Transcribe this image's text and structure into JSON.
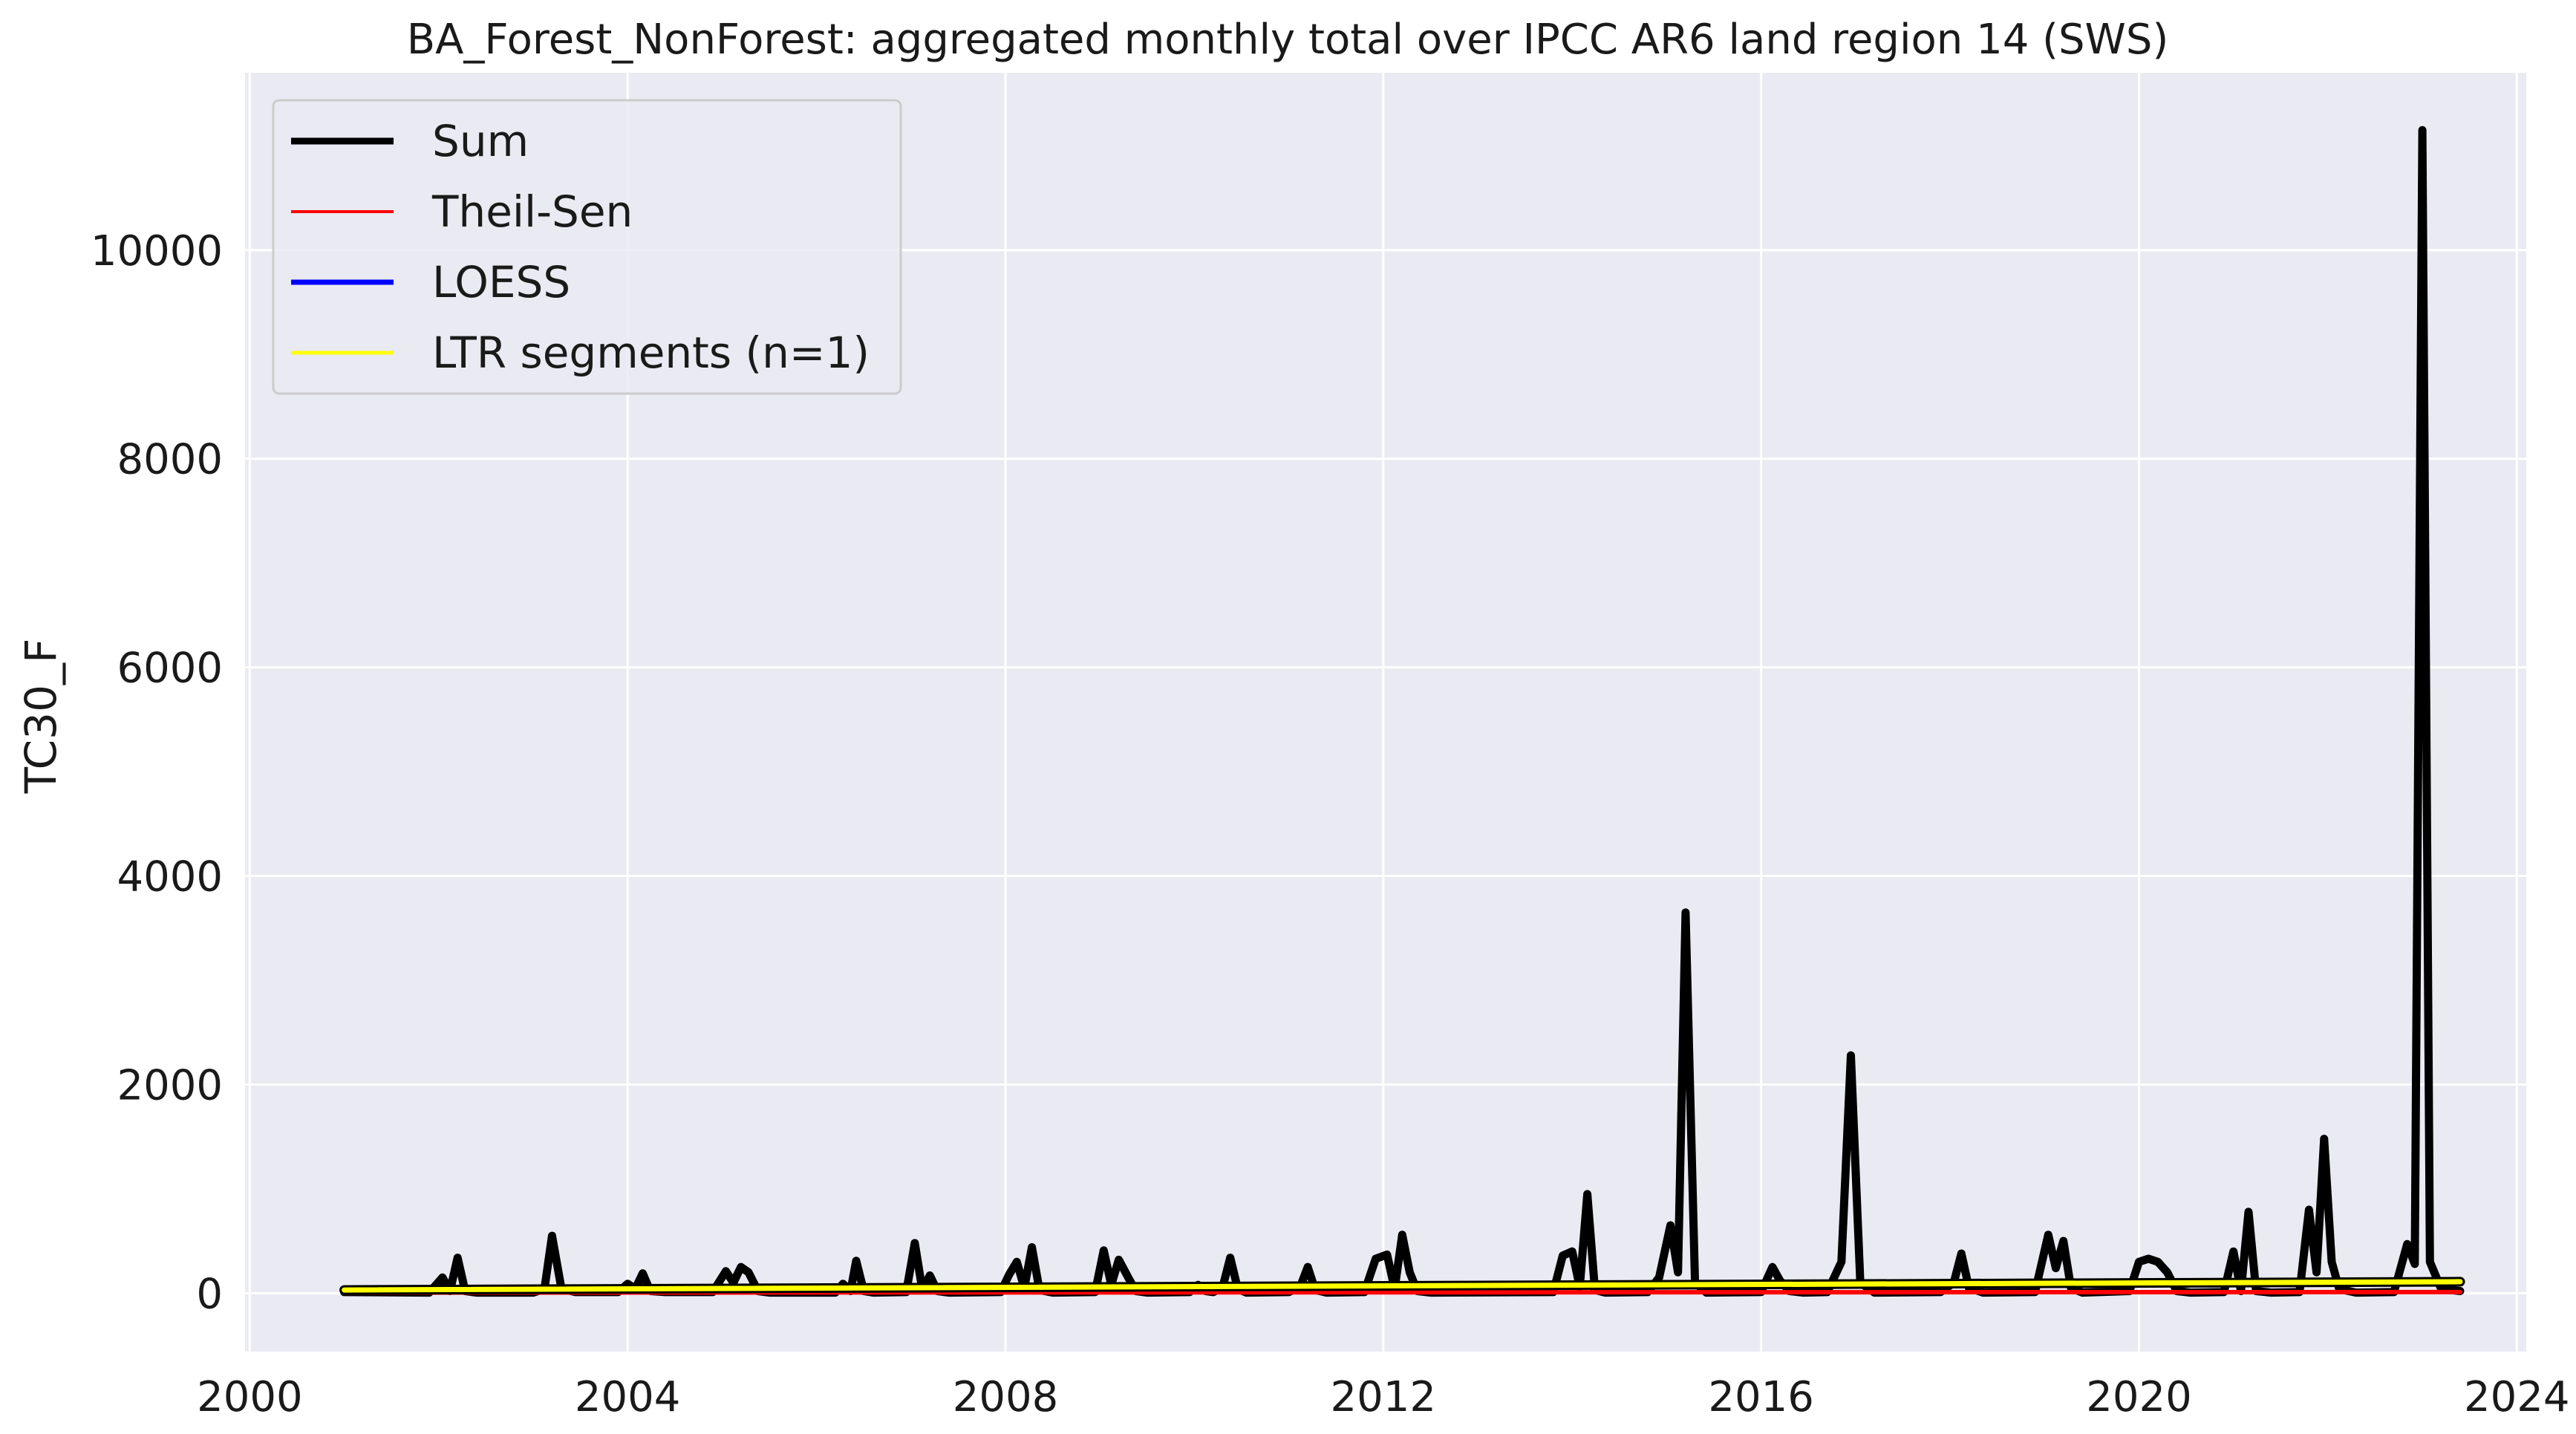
{
  "chart_data": {
    "type": "line",
    "title": "BA_Forest_NonForest: aggregated monthly total over IPCC AR6 land region 14 (SWS)",
    "xlabel": "",
    "ylabel": "TC30_F",
    "xlim": [
      1999.95,
      2024.1
    ],
    "ylim": [
      -560,
      11700
    ],
    "x_ticks": [
      2000,
      2004,
      2008,
      2012,
      2016,
      2020,
      2024
    ],
    "y_ticks": [
      0,
      2000,
      4000,
      6000,
      8000,
      10000
    ],
    "grid": true,
    "legend_position": "upper-left",
    "background": "#eaeaf2",
    "series": [
      {
        "name": "Sum",
        "color": "#000000",
        "points": [
          [
            2001.0,
            10
          ],
          [
            2001.9,
            5
          ],
          [
            2002.04,
            150
          ],
          [
            2002.12,
            20
          ],
          [
            2002.2,
            340
          ],
          [
            2002.28,
            20
          ],
          [
            2002.4,
            5
          ],
          [
            2003.0,
            5
          ],
          [
            2003.12,
            40
          ],
          [
            2003.2,
            550
          ],
          [
            2003.3,
            40
          ],
          [
            2003.45,
            10
          ],
          [
            2003.9,
            10
          ],
          [
            2004.0,
            90
          ],
          [
            2004.08,
            40
          ],
          [
            2004.16,
            190
          ],
          [
            2004.24,
            20
          ],
          [
            2004.4,
            10
          ],
          [
            2004.9,
            10
          ],
          [
            2005.04,
            210
          ],
          [
            2005.12,
            100
          ],
          [
            2005.2,
            250
          ],
          [
            2005.28,
            200
          ],
          [
            2005.38,
            20
          ],
          [
            2005.5,
            5
          ],
          [
            2006.2,
            5
          ],
          [
            2006.28,
            90
          ],
          [
            2006.36,
            20
          ],
          [
            2006.42,
            310
          ],
          [
            2006.5,
            20
          ],
          [
            2006.6,
            5
          ],
          [
            2006.95,
            10
          ],
          [
            2007.04,
            480
          ],
          [
            2007.12,
            30
          ],
          [
            2007.2,
            170
          ],
          [
            2007.28,
            20
          ],
          [
            2007.4,
            5
          ],
          [
            2007.95,
            10
          ],
          [
            2008.04,
            180
          ],
          [
            2008.12,
            300
          ],
          [
            2008.2,
            50
          ],
          [
            2008.28,
            440
          ],
          [
            2008.36,
            30
          ],
          [
            2008.5,
            5
          ],
          [
            2008.95,
            10
          ],
          [
            2009.04,
            410
          ],
          [
            2009.12,
            80
          ],
          [
            2009.2,
            320
          ],
          [
            2009.3,
            150
          ],
          [
            2009.38,
            20
          ],
          [
            2009.5,
            5
          ],
          [
            2009.95,
            10
          ],
          [
            2010.04,
            80
          ],
          [
            2010.12,
            20
          ],
          [
            2010.2,
            10
          ],
          [
            2010.3,
            60
          ],
          [
            2010.38,
            340
          ],
          [
            2010.46,
            40
          ],
          [
            2010.55,
            5
          ],
          [
            2011.0,
            10
          ],
          [
            2011.12,
            60
          ],
          [
            2011.2,
            250
          ],
          [
            2011.28,
            30
          ],
          [
            2011.4,
            5
          ],
          [
            2011.8,
            10
          ],
          [
            2011.92,
            330
          ],
          [
            2012.04,
            370
          ],
          [
            2012.12,
            40
          ],
          [
            2012.2,
            560
          ],
          [
            2012.28,
            200
          ],
          [
            2012.36,
            20
          ],
          [
            2012.5,
            5
          ],
          [
            2013.8,
            10
          ],
          [
            2013.9,
            360
          ],
          [
            2014.0,
            400
          ],
          [
            2014.08,
            60
          ],
          [
            2014.16,
            950
          ],
          [
            2014.24,
            30
          ],
          [
            2014.35,
            5
          ],
          [
            2014.8,
            10
          ],
          [
            2014.92,
            150
          ],
          [
            2015.04,
            650
          ],
          [
            2015.12,
            200
          ],
          [
            2015.2,
            3650
          ],
          [
            2015.3,
            100
          ],
          [
            2015.42,
            5
          ],
          [
            2016.0,
            10
          ],
          [
            2016.12,
            250
          ],
          [
            2016.2,
            120
          ],
          [
            2016.3,
            20
          ],
          [
            2016.45,
            5
          ],
          [
            2016.7,
            10
          ],
          [
            2016.85,
            300
          ],
          [
            2016.95,
            2280
          ],
          [
            2017.05,
            100
          ],
          [
            2017.2,
            5
          ],
          [
            2017.9,
            10
          ],
          [
            2018.04,
            100
          ],
          [
            2018.12,
            380
          ],
          [
            2018.2,
            50
          ],
          [
            2018.35,
            5
          ],
          [
            2018.9,
            10
          ],
          [
            2019.04,
            560
          ],
          [
            2019.12,
            240
          ],
          [
            2019.2,
            500
          ],
          [
            2019.28,
            50
          ],
          [
            2019.4,
            5
          ],
          [
            2019.9,
            20
          ],
          [
            2020.0,
            300
          ],
          [
            2020.1,
            330
          ],
          [
            2020.2,
            300
          ],
          [
            2020.3,
            200
          ],
          [
            2020.4,
            20
          ],
          [
            2020.55,
            5
          ],
          [
            2020.9,
            10
          ],
          [
            2021.0,
            400
          ],
          [
            2021.08,
            20
          ],
          [
            2021.16,
            780
          ],
          [
            2021.24,
            20
          ],
          [
            2021.4,
            5
          ],
          [
            2021.7,
            10
          ],
          [
            2021.8,
            800
          ],
          [
            2021.88,
            200
          ],
          [
            2021.96,
            1480
          ],
          [
            2022.04,
            300
          ],
          [
            2022.12,
            40
          ],
          [
            2022.3,
            5
          ],
          [
            2022.7,
            10
          ],
          [
            2022.84,
            470
          ],
          [
            2022.92,
            280
          ],
          [
            2023.0,
            11150
          ],
          [
            2023.08,
            300
          ],
          [
            2023.2,
            40
          ],
          [
            2023.4,
            20
          ]
        ]
      },
      {
        "name": "Theil-Sen",
        "color": "#ff0000",
        "points": [
          [
            2001.0,
            5
          ],
          [
            2023.4,
            10
          ]
        ]
      },
      {
        "name": "LOESS",
        "color": "#0000ff",
        "points": [
          [
            2001.0,
            30
          ],
          [
            2023.4,
            110
          ]
        ]
      },
      {
        "name": "LTR segments (n=1)",
        "color": "#ffff00",
        "points": [
          [
            2001.0,
            30
          ],
          [
            2023.4,
            110
          ]
        ]
      }
    ]
  }
}
